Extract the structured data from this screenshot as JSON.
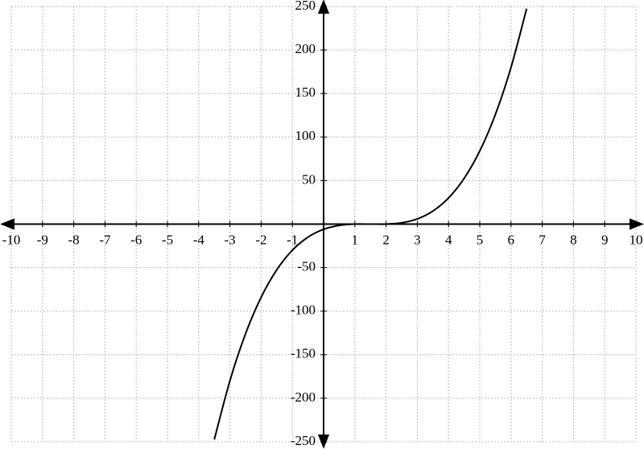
{
  "chart_data": {
    "type": "line",
    "x": [
      -3.5,
      -3,
      -2.5,
      -2,
      -1.5,
      -1,
      -0.5,
      0,
      0.5,
      1,
      1.5,
      2,
      2.5,
      3,
      3.5,
      4,
      4.5,
      5,
      5.5,
      6,
      6.5
    ],
    "series": [
      {
        "color": "#000000",
        "values": [
          -247.5,
          -180,
          -126,
          -84,
          -52.5,
          -30,
          -15,
          -6,
          -1.5,
          0,
          0,
          0,
          1.5,
          6,
          15,
          30,
          52.5,
          84,
          126,
          180,
          247.5
        ]
      }
    ],
    "xlim": [
      -10,
      10
    ],
    "ylim": [
      -250,
      250
    ],
    "xticks": [
      -10,
      -9,
      -8,
      -7,
      -6,
      -5,
      -4,
      -3,
      -2,
      -1,
      1,
      2,
      3,
      4,
      5,
      6,
      7,
      8,
      9,
      10
    ],
    "yticks": [
      -250,
      -200,
      -150,
      -100,
      -50,
      50,
      100,
      150,
      200,
      250
    ],
    "grid": true
  }
}
